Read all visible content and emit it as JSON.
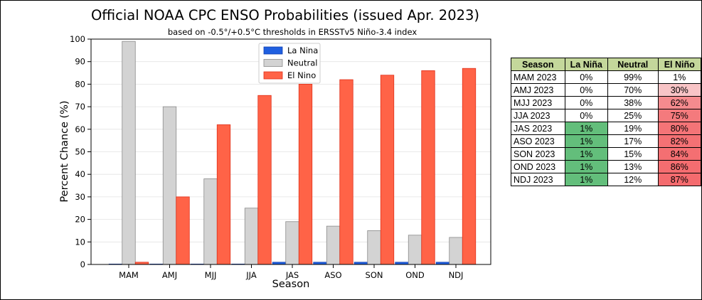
{
  "chart_data": {
    "type": "bar",
    "title": "Official NOAA CPC ENSO Probabilities (issued Apr. 2023)",
    "subtitle": "based on -0.5°/+0.5°C thresholds in ERSSTv5 Niño-3.4 index",
    "xlabel": "Season",
    "ylabel": "Percent Chance (%)",
    "ylim": [
      0,
      100
    ],
    "yticks": [
      0,
      10,
      20,
      30,
      40,
      50,
      60,
      70,
      80,
      90,
      100
    ],
    "grid": "horizontal",
    "legend_position": "top-center",
    "categories": [
      "MAM",
      "AMJ",
      "MJJ",
      "JJA",
      "JAS",
      "ASO",
      "SON",
      "OND",
      "NDJ"
    ],
    "series": [
      {
        "name": "La Nina",
        "color": "#1f5fe0",
        "values": [
          0,
          0,
          0,
          0,
          1,
          1,
          1,
          1,
          1
        ]
      },
      {
        "name": "Neutral",
        "color": "#d3d3d3",
        "values": [
          99,
          70,
          38,
          25,
          19,
          17,
          15,
          13,
          12
        ]
      },
      {
        "name": "El Nino",
        "color": "#ff6347",
        "values": [
          1,
          30,
          62,
          75,
          80,
          82,
          84,
          86,
          87
        ]
      }
    ]
  },
  "table": {
    "headers": [
      "Season",
      "La Niña",
      "Neutral",
      "El Niño"
    ],
    "header_color": "#c4d79b",
    "rows": [
      {
        "season": "MAM 2023",
        "la_nina": "0%",
        "neutral": "99%",
        "el_nino": "1%",
        "la_nina_color": "#ffffff",
        "el_nino_color": "#ffffff"
      },
      {
        "season": "AMJ 2023",
        "la_nina": "0%",
        "neutral": "70%",
        "el_nino": "30%",
        "la_nina_color": "#ffffff",
        "el_nino_color": "#f8c4c6"
      },
      {
        "season": "MJJ 2023",
        "la_nina": "0%",
        "neutral": "38%",
        "el_nino": "62%",
        "la_nina_color": "#ffffff",
        "el_nino_color": "#f58b8e"
      },
      {
        "season": "JJA 2023",
        "la_nina": "0%",
        "neutral": "25%",
        "el_nino": "75%",
        "la_nina_color": "#ffffff",
        "el_nino_color": "#f47a7d"
      },
      {
        "season": "JAS 2023",
        "la_nina": "1%",
        "neutral": "19%",
        "el_nino": "80%",
        "la_nina_color": "#63be7b",
        "el_nino_color": "#f47477"
      },
      {
        "season": "ASO 2023",
        "la_nina": "1%",
        "neutral": "17%",
        "el_nino": "82%",
        "la_nina_color": "#63be7b",
        "el_nino_color": "#f47174"
      },
      {
        "season": "SON 2023",
        "la_nina": "1%",
        "neutral": "15%",
        "el_nino": "84%",
        "la_nina_color": "#63be7b",
        "el_nino_color": "#f46f72"
      },
      {
        "season": "OND 2023",
        "la_nina": "1%",
        "neutral": "13%",
        "el_nino": "86%",
        "la_nina_color": "#63be7b",
        "el_nino_color": "#f46d70"
      },
      {
        "season": "NDJ 2023",
        "la_nina": "1%",
        "neutral": "12%",
        "el_nino": "87%",
        "la_nina_color": "#63be7b",
        "el_nino_color": "#f46b6e"
      }
    ]
  }
}
